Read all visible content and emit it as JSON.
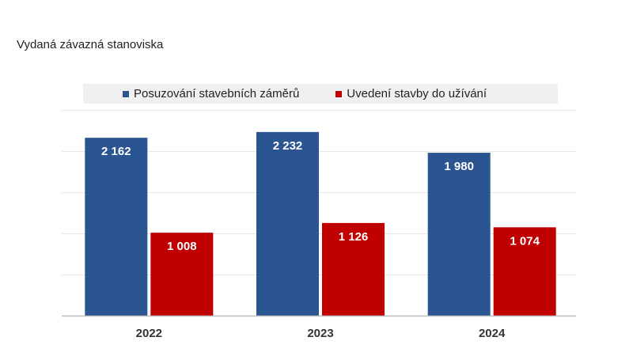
{
  "chart_data": {
    "type": "bar",
    "title": "Vydaná závazná stanoviska",
    "categories": [
      "2022",
      "2023",
      "2024"
    ],
    "series": [
      {
        "name": "Posuzování stavebních záměrů",
        "color": "#2a5591",
        "values": [
          2162,
          2232,
          1980
        ],
        "labels": [
          "2 162",
          "2 232",
          "1 980"
        ]
      },
      {
        "name": "Uvedení stavby do užívání",
        "color": "#c00000",
        "values": [
          1008,
          1126,
          1074
        ],
        "labels": [
          "1 008",
          "1 126",
          "1 074"
        ]
      }
    ],
    "ylim": [
      0,
      2500
    ],
    "gridlines": true,
    "legend_position": "top"
  }
}
